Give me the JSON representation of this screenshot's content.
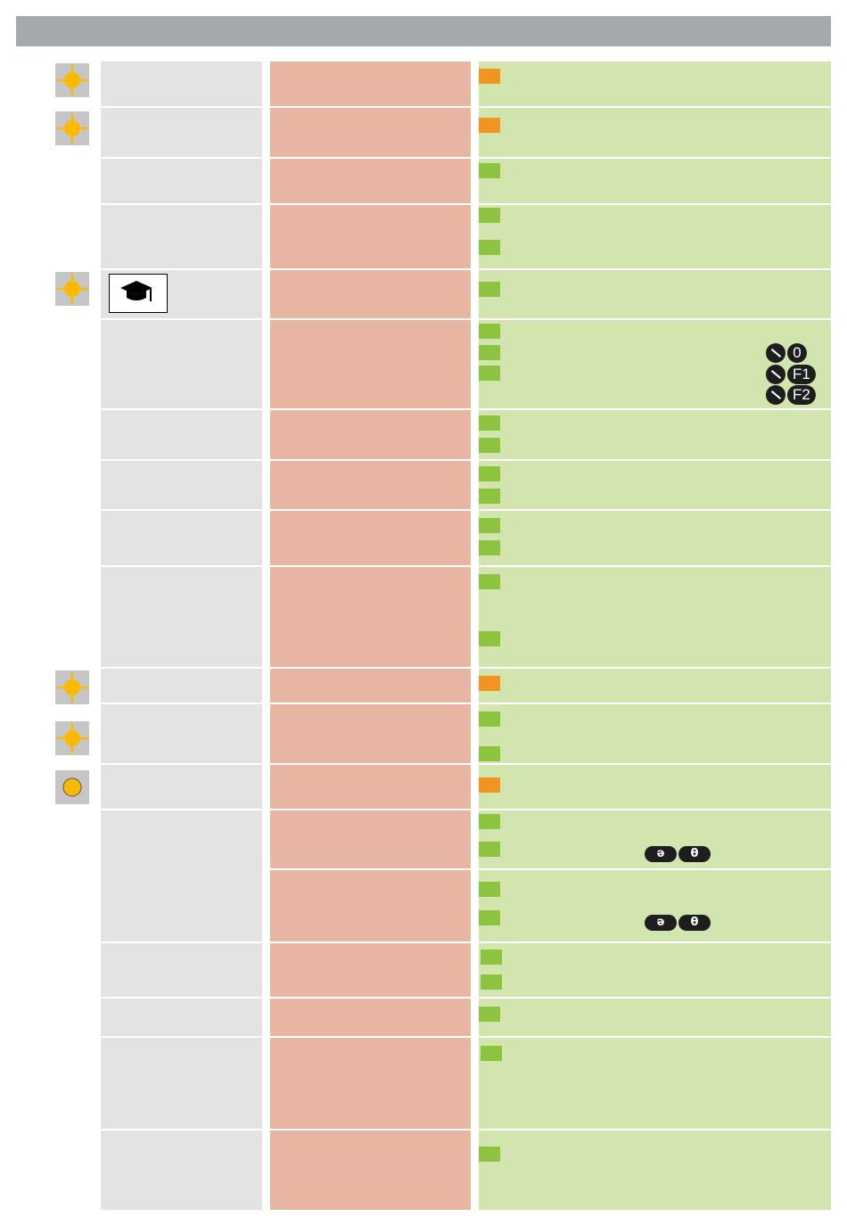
{
  "header": {
    "title": ""
  },
  "keys": {
    "zero": "0",
    "f1": "F1",
    "f2": "F2",
    "pill_left": "ə",
    "pill_right": "θ"
  },
  "icons": {
    "target": "target-sun-icon",
    "circle": "circle-icon",
    "mortarboard": "graduation-cap-icon",
    "tool": "screwdriver-icon"
  },
  "colors": {
    "header": "#a6a9ab",
    "grey_column": "#e3e3e3",
    "red_column": "#e8b5a3",
    "green_column": "#d2e5ae",
    "marker_green": "#8cc43f",
    "marker_orange": "#f29420",
    "icon_yellow": "#fbb900"
  }
}
